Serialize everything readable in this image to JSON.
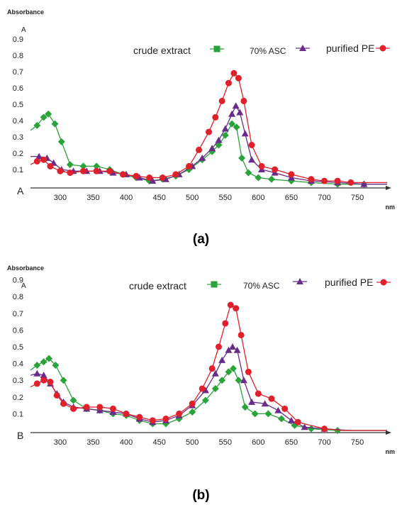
{
  "captions": [
    "(a)",
    "(b)"
  ],
  "chart_data": [
    {
      "type": "line",
      "panel_letter": "A",
      "ylabel": "Absorbance",
      "y_unit": "A",
      "xlabel": "nm",
      "xlim": [
        255,
        795
      ],
      "ylim": [
        0,
        1.0
      ],
      "x_ticks": [
        300,
        350,
        400,
        450,
        500,
        550,
        600,
        650,
        700,
        750
      ],
      "y_ticks": [
        0.1,
        0.2,
        0.3,
        0.4,
        0.5,
        0.6,
        0.7,
        0.8,
        0.9
      ],
      "legend_placement": "top-right",
      "series": [
        {
          "name": "crude extract",
          "color": "#2aa33a",
          "marker": "square",
          "x": [
            255,
            265,
            275,
            282,
            292,
            302,
            315,
            335,
            355,
            375,
            395,
            415,
            435,
            455,
            475,
            495,
            515,
            530,
            540,
            550,
            560,
            567,
            575,
            585,
            600,
            620,
            650,
            680,
            720,
            760,
            795
          ],
          "y": [
            0.34,
            0.37,
            0.42,
            0.44,
            0.38,
            0.27,
            0.13,
            0.12,
            0.12,
            0.1,
            0.07,
            0.05,
            0.03,
            0.04,
            0.06,
            0.1,
            0.16,
            0.21,
            0.25,
            0.31,
            0.38,
            0.36,
            0.17,
            0.08,
            0.05,
            0.04,
            0.03,
            0.02,
            0.01,
            0.01,
            0.01
          ]
        },
        {
          "name": "70% ASC",
          "color": "#6a2c8c",
          "marker": "triangle",
          "x": [
            255,
            268,
            280,
            290,
            302,
            320,
            340,
            360,
            380,
            400,
            420,
            440,
            460,
            480,
            500,
            515,
            530,
            540,
            550,
            560,
            566,
            572,
            580,
            590,
            605,
            625,
            650,
            680,
            720,
            760,
            795
          ],
          "y": [
            0.18,
            0.18,
            0.17,
            0.14,
            0.1,
            0.09,
            0.09,
            0.09,
            0.08,
            0.07,
            0.05,
            0.03,
            0.04,
            0.07,
            0.12,
            0.17,
            0.23,
            0.28,
            0.35,
            0.44,
            0.49,
            0.45,
            0.32,
            0.16,
            0.1,
            0.08,
            0.05,
            0.03,
            0.02,
            0.01,
            0.01
          ]
        },
        {
          "name": "purified PE",
          "color": "#e0202a",
          "marker": "circle",
          "x": [
            255,
            265,
            275,
            285,
            300,
            315,
            335,
            355,
            375,
            395,
            415,
            435,
            455,
            475,
            495,
            510,
            525,
            535,
            545,
            555,
            563,
            570,
            578,
            590,
            605,
            625,
            650,
            680,
            700,
            720,
            740,
            795
          ],
          "y": [
            0.13,
            0.15,
            0.16,
            0.12,
            0.09,
            0.08,
            0.09,
            0.09,
            0.09,
            0.07,
            0.06,
            0.05,
            0.05,
            0.07,
            0.12,
            0.22,
            0.33,
            0.42,
            0.52,
            0.63,
            0.69,
            0.66,
            0.52,
            0.25,
            0.12,
            0.1,
            0.07,
            0.04,
            0.03,
            0.03,
            0.02,
            0.02
          ]
        }
      ]
    },
    {
      "type": "line",
      "panel_letter": "B",
      "ylabel": "Absorbance",
      "y_unit": "A",
      "xlabel": "nm",
      "xlim": [
        255,
        795
      ],
      "ylim": [
        0,
        1.0
      ],
      "x_ticks": [
        300,
        350,
        400,
        450,
        500,
        550,
        600,
        650,
        700,
        750
      ],
      "y_ticks": [
        0.1,
        0.2,
        0.3,
        0.4,
        0.5,
        0.6,
        0.7,
        0.8,
        0.9
      ],
      "legend_placement": "top-right",
      "series": [
        {
          "name": "crude extract",
          "color": "#2aa33a",
          "marker": "square",
          "x": [
            255,
            265,
            275,
            283,
            293,
            305,
            320,
            340,
            360,
            380,
            400,
            420,
            440,
            460,
            480,
            500,
            520,
            535,
            545,
            555,
            562,
            570,
            580,
            595,
            615,
            635,
            655,
            680,
            720,
            760,
            795
          ],
          "y": [
            0.36,
            0.39,
            0.41,
            0.43,
            0.39,
            0.3,
            0.18,
            0.13,
            0.12,
            0.1,
            0.09,
            0.06,
            0.04,
            0.04,
            0.07,
            0.11,
            0.18,
            0.25,
            0.3,
            0.35,
            0.37,
            0.3,
            0.14,
            0.1,
            0.1,
            0.07,
            0.03,
            0.01,
            0.0,
            0.0,
            0.0
          ]
        },
        {
          "name": "70% ASC",
          "color": "#6a2c8c",
          "marker": "triangle",
          "x": [
            255,
            265,
            275,
            285,
            295,
            305,
            320,
            340,
            360,
            380,
            400,
            420,
            440,
            460,
            480,
            500,
            520,
            535,
            545,
            555,
            561,
            568,
            578,
            590,
            610,
            630,
            650,
            670,
            700,
            740,
            795
          ],
          "y": [
            0.33,
            0.34,
            0.33,
            0.28,
            0.22,
            0.17,
            0.14,
            0.13,
            0.12,
            0.11,
            0.1,
            0.07,
            0.05,
            0.06,
            0.09,
            0.15,
            0.24,
            0.34,
            0.42,
            0.48,
            0.5,
            0.48,
            0.3,
            0.17,
            0.16,
            0.12,
            0.06,
            0.02,
            0.01,
            0.0,
            0.0
          ]
        },
        {
          "name": "purified PE",
          "color": "#e0202a",
          "marker": "circle",
          "x": [
            255,
            265,
            275,
            285,
            295,
            305,
            320,
            340,
            360,
            380,
            400,
            420,
            440,
            460,
            480,
            500,
            515,
            530,
            540,
            550,
            558,
            566,
            574,
            585,
            600,
            620,
            640,
            660,
            700,
            730,
            795
          ],
          "y": [
            0.26,
            0.28,
            0.3,
            0.29,
            0.21,
            0.16,
            0.13,
            0.14,
            0.14,
            0.13,
            0.1,
            0.08,
            0.06,
            0.07,
            0.1,
            0.16,
            0.25,
            0.37,
            0.5,
            0.64,
            0.75,
            0.73,
            0.57,
            0.35,
            0.22,
            0.19,
            0.13,
            0.05,
            0.01,
            0.0,
            0.0
          ]
        }
      ]
    }
  ]
}
